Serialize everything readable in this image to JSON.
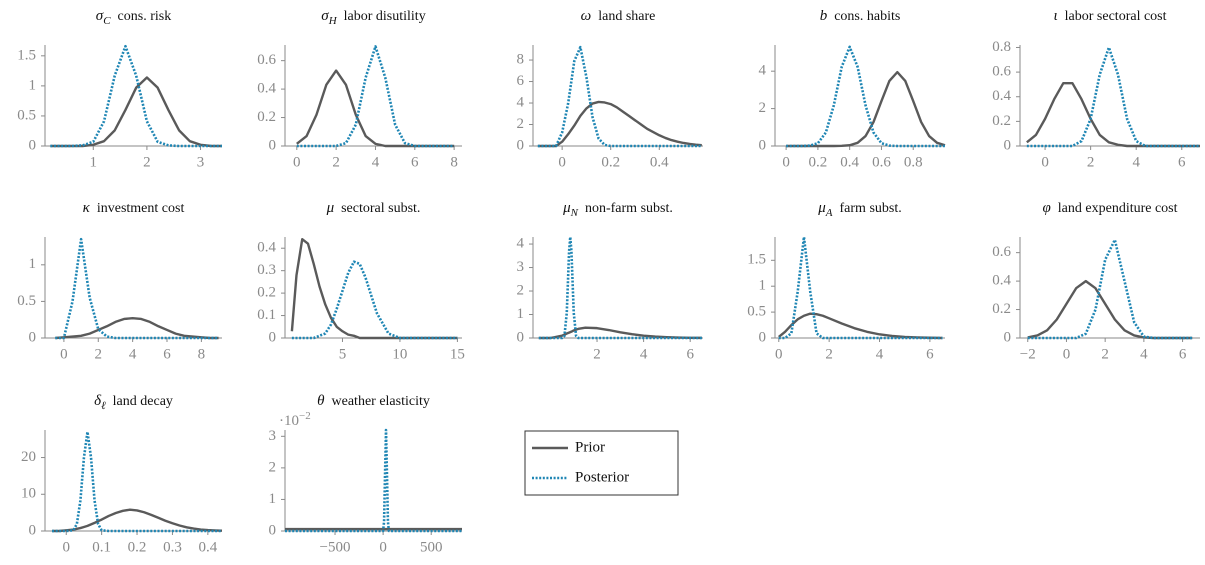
{
  "chart_data": [
    {
      "type": "line",
      "symbol": "σ",
      "subscript": "C",
      "title": "cons. risk",
      "x": [
        0.2,
        0.4,
        0.6,
        0.8,
        1.0,
        1.2,
        1.4,
        1.6,
        1.8,
        2.0,
        2.2,
        2.4,
        2.6,
        2.8,
        3.0,
        3.2,
        3.4
      ],
      "series": [
        {
          "name": "Prior",
          "color": "#5a5a5a",
          "style": "solid",
          "values": [
            0,
            0,
            0,
            0,
            0.02,
            0.08,
            0.26,
            0.6,
            0.97,
            1.14,
            0.97,
            0.6,
            0.26,
            0.08,
            0.02,
            0,
            0
          ]
        },
        {
          "name": "Posterior",
          "color": "#1f86b4",
          "style": "dotted",
          "values": [
            0,
            0,
            0,
            0.01,
            0.07,
            0.41,
            1.17,
            1.66,
            1.17,
            0.41,
            0.07,
            0.01,
            0,
            0,
            0,
            0,
            0
          ]
        }
      ],
      "xlim": [
        0.1,
        3.4
      ],
      "xticks": [
        1,
        2,
        3
      ],
      "ylim": [
        0,
        1.68
      ],
      "yticks": [
        0,
        0.5,
        1,
        1.5
      ]
    },
    {
      "type": "line",
      "symbol": "σ",
      "subscript": "H",
      "title": "labor disutility",
      "x": [
        0,
        0.5,
        1,
        1.5,
        2,
        2.5,
        3,
        3.5,
        4,
        4.5,
        5,
        5.5,
        6,
        6.5,
        7,
        7.5,
        8
      ],
      "series": [
        {
          "color": "#5a5a5a",
          "style": "solid",
          "values": [
            0.015,
            0.07,
            0.22,
            0.43,
            0.53,
            0.43,
            0.22,
            0.07,
            0.015,
            0,
            0,
            0,
            0,
            0,
            0,
            0,
            0
          ]
        },
        {
          "color": "#1f86b4",
          "style": "dotted",
          "values": [
            0,
            0,
            0,
            0,
            0,
            0.02,
            0.15,
            0.48,
            0.7,
            0.48,
            0.15,
            0.02,
            0,
            0,
            0,
            0,
            0
          ]
        }
      ],
      "xlim": [
        -0.6,
        8.4
      ],
      "xticks": [
        0,
        2,
        4,
        6,
        8
      ],
      "ylim": [
        0,
        0.71
      ],
      "yticks": [
        0,
        0.2,
        0.4,
        0.6
      ]
    },
    {
      "type": "line",
      "symbol": "ω",
      "title": "land share",
      "x": [
        -0.1,
        -0.075,
        -0.05,
        -0.025,
        0,
        0.025,
        0.05,
        0.075,
        0.1,
        0.125,
        0.15,
        0.175,
        0.2,
        0.225,
        0.25,
        0.275,
        0.3,
        0.325,
        0.35,
        0.375,
        0.4,
        0.425,
        0.45,
        0.475,
        0.5,
        0.525,
        0.55,
        0.575
      ],
      "series": [
        {
          "color": "#5a5a5a",
          "style": "solid",
          "values": [
            0,
            0,
            0,
            0,
            0.4,
            1.1,
            1.9,
            2.8,
            3.5,
            3.95,
            4.1,
            4.05,
            3.9,
            3.6,
            3.2,
            2.8,
            2.4,
            2.0,
            1.6,
            1.3,
            1.0,
            0.75,
            0.55,
            0.4,
            0.28,
            0.19,
            0.12,
            0.08
          ]
        },
        {
          "color": "#1f86b4",
          "style": "dotted",
          "values": [
            0,
            0,
            0,
            0,
            1.26,
            4.0,
            7.9,
            9.2,
            6.4,
            2.7,
            0.7,
            0.1,
            0,
            0,
            0,
            0,
            0,
            0,
            0,
            0,
            0,
            0,
            0,
            0,
            0,
            0,
            0,
            0
          ]
        }
      ],
      "xlim": [
        -0.12,
        0.58
      ],
      "xticks": [
        0,
        0.2,
        0.4
      ],
      "ylim": [
        0,
        9.4
      ],
      "yticks": [
        0,
        2,
        4,
        6,
        8
      ]
    },
    {
      "type": "line",
      "symbol": "b",
      "title": "cons. habits",
      "x": [
        0,
        0.05,
        0.1,
        0.15,
        0.2,
        0.25,
        0.3,
        0.35,
        0.4,
        0.45,
        0.5,
        0.55,
        0.6,
        0.65,
        0.7,
        0.75,
        0.8,
        0.85,
        0.9,
        0.95,
        1.0
      ],
      "series": [
        {
          "color": "#5a5a5a",
          "style": "solid",
          "values": [
            0,
            0,
            0,
            0,
            0,
            0,
            0,
            0.01,
            0.04,
            0.17,
            0.53,
            1.28,
            2.4,
            3.48,
            3.95,
            3.48,
            2.4,
            1.28,
            0.53,
            0.17,
            0.04
          ]
        },
        {
          "color": "#1f86b4",
          "style": "dotted",
          "values": [
            0,
            0,
            0,
            0.02,
            0.15,
            0.72,
            2.17,
            4.23,
            5.3,
            4.23,
            2.17,
            0.72,
            0.15,
            0.02,
            0,
            0,
            0,
            0,
            0,
            0,
            0
          ]
        }
      ],
      "xlim": [
        -0.07,
        1.0
      ],
      "xticks": [
        0,
        0.2,
        0.4,
        0.6,
        0.8
      ],
      "ylim": [
        0,
        5.4
      ],
      "yticks": [
        0,
        2,
        4
      ]
    },
    {
      "type": "line",
      "symbol": "ι",
      "title": "labor sectoral cost",
      "x": [
        -0.8,
        -0.4,
        0,
        0.4,
        0.8,
        1.2,
        1.6,
        2.0,
        2.4,
        2.8,
        3.2,
        3.6,
        4.0,
        4.4,
        4.8,
        5.2,
        5.6,
        6.0,
        6.4,
        6.8
      ],
      "series": [
        {
          "color": "#5a5a5a",
          "style": "solid",
          "values": [
            0.03,
            0.09,
            0.22,
            0.38,
            0.51,
            0.51,
            0.38,
            0.22,
            0.09,
            0.03,
            0.01,
            0,
            0,
            0,
            0,
            0,
            0,
            0,
            0,
            0
          ]
        },
        {
          "color": "#1f86b4",
          "style": "dotted",
          "values": [
            0,
            0,
            0,
            0,
            0,
            0,
            0.04,
            0.22,
            0.58,
            0.8,
            0.58,
            0.22,
            0.04,
            0,
            0,
            0,
            0,
            0,
            0,
            0
          ]
        }
      ],
      "xlim": [
        -1.1,
        6.8
      ],
      "xticks": [
        0,
        2,
        4,
        6
      ],
      "ylim": [
        0,
        0.82
      ],
      "yticks": [
        0,
        0.2,
        0.4,
        0.6,
        0.8
      ]
    },
    {
      "type": "line",
      "symbol": "κ",
      "title": "investment cost",
      "x": [
        -0.5,
        0,
        0.5,
        1,
        1.5,
        2,
        2.5,
        3,
        3.5,
        4,
        4.5,
        5,
        5.5,
        6,
        6.5,
        7,
        7.5,
        8,
        8.5,
        9
      ],
      "series": [
        {
          "color": "#5a5a5a",
          "style": "solid",
          "values": [
            0,
            0.01,
            0.02,
            0.03,
            0.06,
            0.11,
            0.16,
            0.22,
            0.26,
            0.27,
            0.26,
            0.22,
            0.16,
            0.11,
            0.06,
            0.03,
            0.02,
            0.01,
            0,
            0
          ]
        },
        {
          "color": "#1f86b4",
          "style": "dotted",
          "values": [
            0,
            0,
            0.5,
            1.35,
            0.55,
            0.12,
            0.02,
            0,
            0,
            0,
            0,
            0,
            0,
            0,
            0,
            0,
            0,
            0,
            0,
            0
          ]
        }
      ],
      "xlim": [
        -1.1,
        9.2
      ],
      "xticks": [
        0,
        2,
        4,
        6,
        8
      ],
      "ylim": [
        0,
        1.38
      ],
      "yticks": [
        0,
        0.5,
        1
      ]
    },
    {
      "type": "line",
      "symbol": "μ",
      "title": "sectoral subst.",
      "x": [
        0.6,
        1,
        1.5,
        2,
        2.5,
        3,
        3.5,
        4,
        4.5,
        5,
        5.5,
        6,
        6.5,
        7,
        7.5,
        8,
        9,
        10,
        11,
        12,
        13,
        14,
        15
      ],
      "series": [
        {
          "color": "#5a5a5a",
          "style": "solid",
          "values": [
            0.03,
            0.28,
            0.44,
            0.42,
            0.33,
            0.23,
            0.15,
            0.09,
            0.05,
            0.03,
            0.015,
            0.01,
            0,
            0,
            0,
            0,
            0,
            0,
            0,
            0,
            0,
            0,
            0
          ]
        },
        {
          "color": "#1f86b4",
          "style": "dotted",
          "values": [
            0,
            0,
            0,
            0,
            0,
            0.01,
            0.02,
            0.06,
            0.13,
            0.21,
            0.29,
            0.34,
            0.33,
            0.27,
            0.19,
            0.11,
            0.02,
            0,
            0,
            0,
            0,
            0,
            0
          ]
        }
      ],
      "xlim": [
        0,
        15.4
      ],
      "xticks": [
        5,
        10,
        15
      ],
      "ylim": [
        0,
        0.45
      ],
      "yticks": [
        0,
        0.1,
        0.2,
        0.3,
        0.4
      ]
    },
    {
      "type": "line",
      "symbol": "μ",
      "subscript": "N",
      "title": "non-farm subst.",
      "x": [
        -0.5,
        0,
        0.5,
        0.6,
        0.7,
        0.8,
        0.85,
        0.9,
        1.0,
        1.1,
        1.2,
        1.5,
        2,
        2.5,
        3,
        3.5,
        4,
        4.5,
        5,
        5.5,
        6,
        6.5
      ],
      "series": [
        {
          "color": "#5a5a5a",
          "style": "solid",
          "values": [
            0,
            0,
            0.1,
            0.14,
            0.19,
            0.23,
            0.25,
            0.27,
            0.32,
            0.36,
            0.39,
            0.44,
            0.42,
            0.34,
            0.24,
            0.16,
            0.1,
            0.06,
            0.035,
            0.02,
            0.01,
            0.005
          ]
        },
        {
          "color": "#1f86b4",
          "style": "dotted",
          "values": [
            0,
            0,
            0,
            0.09,
            1.07,
            3.7,
            4.3,
            3.7,
            1.07,
            0.09,
            0,
            0,
            0,
            0,
            0,
            0,
            0,
            0,
            0,
            0,
            0,
            0
          ]
        }
      ],
      "xlim": [
        -0.75,
        6.55
      ],
      "xticks": [
        2,
        4,
        6
      ],
      "ylim": [
        0,
        4.3
      ],
      "yticks": [
        0,
        1,
        2,
        3,
        4
      ]
    },
    {
      "type": "line",
      "symbol": "μ",
      "subscript": "A",
      "title": "farm subst.",
      "x": [
        0,
        0.25,
        0.5,
        0.75,
        1,
        1.25,
        1.5,
        1.75,
        2,
        2.5,
        3,
        3.5,
        4,
        4.5,
        5,
        5.5,
        6,
        6.5
      ],
      "series": [
        {
          "color": "#5a5a5a",
          "style": "solid",
          "values": [
            0.02,
            0.12,
            0.25,
            0.36,
            0.43,
            0.47,
            0.46,
            0.43,
            0.38,
            0.28,
            0.19,
            0.12,
            0.07,
            0.04,
            0.02,
            0.01,
            0.005,
            0
          ]
        },
        {
          "color": "#1f86b4",
          "style": "dotted",
          "values": [
            0,
            0,
            0.09,
            0.89,
            1.95,
            0.89,
            0.09,
            0,
            0,
            0,
            0,
            0,
            0,
            0,
            0,
            0,
            0,
            0
          ]
        }
      ],
      "xlim": [
        -0.15,
        6.6
      ],
      "xticks": [
        0,
        2,
        4,
        6
      ],
      "ylim": [
        0,
        1.95
      ],
      "yticks": [
        0,
        0.5,
        1,
        1.5
      ]
    },
    {
      "type": "line",
      "symbol": "φ",
      "title": "land expenditure cost",
      "x": [
        -2,
        -1.5,
        -1,
        -0.5,
        0,
        0.5,
        1,
        1.5,
        2,
        2.5,
        3,
        3.5,
        4,
        4.5,
        5,
        5.5,
        6,
        6.5
      ],
      "series": [
        {
          "color": "#5a5a5a",
          "style": "solid",
          "values": [
            0.004,
            0.018,
            0.054,
            0.13,
            0.24,
            0.35,
            0.4,
            0.35,
            0.24,
            0.13,
            0.054,
            0.018,
            0.004,
            0,
            0,
            0,
            0,
            0
          ]
        },
        {
          "color": "#1f86b4",
          "style": "dotted",
          "values": [
            0,
            0,
            0,
            0,
            0,
            0,
            0.03,
            0.2,
            0.55,
            0.69,
            0.4,
            0.11,
            0.01,
            0,
            0,
            0,
            0,
            0
          ]
        }
      ],
      "xlim": [
        -2.4,
        6.9
      ],
      "xticks": [
        {
          "value": -2,
          "label": "−2"
        },
        0,
        2,
        4,
        6
      ],
      "ylim": [
        0,
        0.71
      ],
      "yticks": [
        0,
        0.2,
        0.4,
        0.6
      ]
    },
    {
      "type": "line",
      "symbol": "δ",
      "subscript": "ℓ",
      "title": "land decay",
      "x": [
        -0.04,
        -0.02,
        0,
        0.02,
        0.03,
        0.04,
        0.05,
        0.06,
        0.07,
        0.08,
        0.09,
        0.1,
        0.12,
        0.14,
        0.16,
        0.18,
        0.2,
        0.22,
        0.24,
        0.26,
        0.28,
        0.3,
        0.32,
        0.34,
        0.36,
        0.38,
        0.4,
        0.42,
        0.44
      ],
      "series": [
        {
          "color": "#5a5a5a",
          "style": "solid",
          "values": [
            0,
            0,
            0.2,
            0.4,
            0.6,
            0.8,
            1.1,
            1.4,
            1.8,
            2.2,
            2.7,
            3.1,
            4.1,
            4.9,
            5.5,
            5.8,
            5.6,
            5.1,
            4.4,
            3.6,
            2.8,
            2.1,
            1.5,
            1.0,
            0.65,
            0.4,
            0.25,
            0.15,
            0.08
          ]
        },
        {
          "color": "#1f86b4",
          "style": "dotted",
          "values": [
            0,
            0,
            0,
            0.2,
            1.9,
            8.3,
            20,
            27,
            20,
            8.3,
            1.9,
            0.2,
            0,
            0,
            0,
            0,
            0,
            0,
            0,
            0,
            0,
            0,
            0,
            0,
            0,
            0,
            0,
            0,
            0
          ]
        }
      ],
      "xlim": [
        -0.06,
        0.44
      ],
      "xticks": [
        0,
        0.1,
        0.2,
        0.3,
        0.4
      ],
      "ylim": [
        0,
        27.5
      ],
      "yticks": [
        0,
        10,
        20
      ]
    },
    {
      "type": "line",
      "symbol": "θ",
      "title": "weather elasticity",
      "y_offset_base": "·10",
      "y_offset_exp": "−2",
      "x": [
        -1020,
        -20,
        0,
        10,
        20,
        30,
        40,
        50,
        60,
        80,
        820
      ],
      "series": [
        {
          "color": "#5a5a5a",
          "style": "solid",
          "values": [
            0.06,
            0.06,
            0.06,
            0.06,
            0.06,
            0.06,
            0.06,
            0.06,
            0.06,
            0.06,
            0.06
          ]
        },
        {
          "color": "#1f86b4",
          "style": "dotted",
          "values": [
            0,
            0,
            0,
            0.3,
            1.8,
            3.2,
            1.8,
            0.3,
            0,
            0,
            0
          ]
        }
      ],
      "xlim": [
        -1020,
        820
      ],
      "xticks": [
        {
          "value": -500,
          "label": "−500"
        },
        0,
        500
      ],
      "ylim": [
        0,
        3.2
      ],
      "yticks": [
        0,
        1,
        2,
        3
      ]
    }
  ]
}
